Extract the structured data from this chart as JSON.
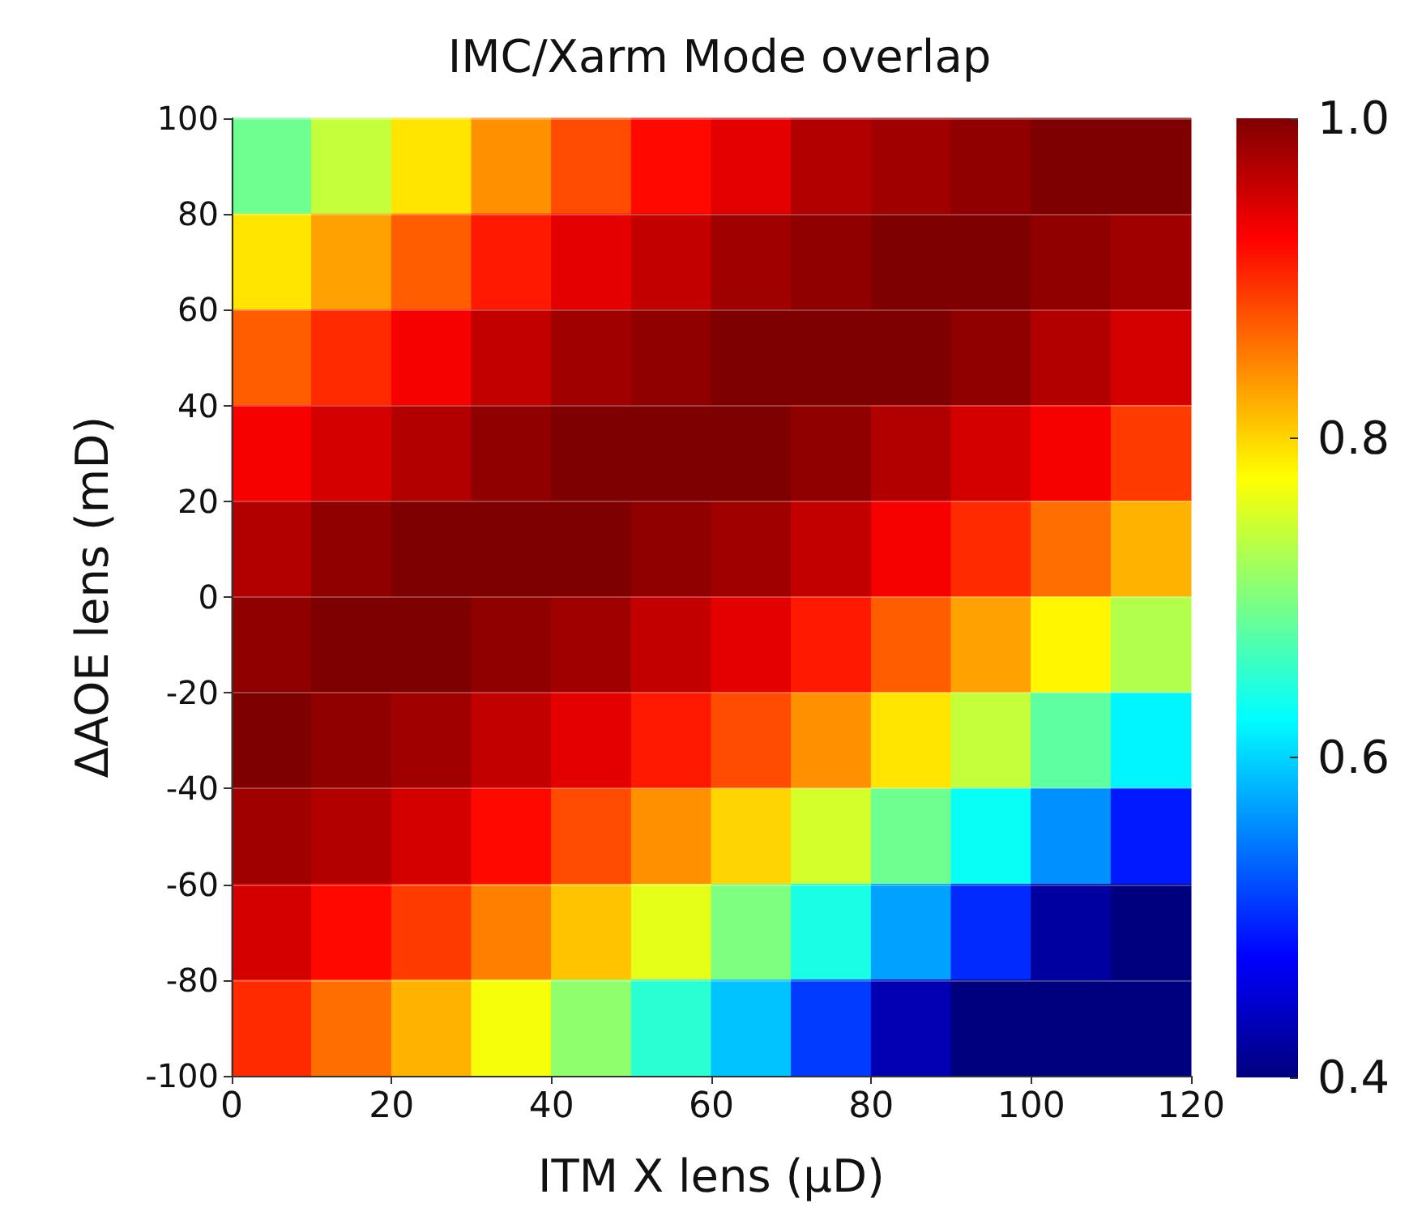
{
  "chart_data": {
    "type": "heatmap",
    "title": "IMC/Xarm Mode overlap",
    "xlabel": "ITM X lens (µD)",
    "ylabel": "ΔAOE lens (mD)",
    "xlim": [
      0,
      120
    ],
    "xticks": [
      0,
      20,
      40,
      60,
      80,
      100,
      120
    ],
    "ylim": [
      -100,
      100
    ],
    "yticks": [
      -100,
      -80,
      -60,
      -40,
      -20,
      0,
      20,
      40,
      60,
      80,
      100
    ],
    "grid": "y",
    "clim": [
      0.4,
      1.0
    ],
    "cticks": [
      0.4,
      0.6,
      0.8,
      {
        "value": 1,
        "label": "1.0"
      }
    ],
    "cells": [
      [
        0.69,
        0.74,
        0.79,
        0.84,
        0.88,
        0.92,
        0.94,
        0.97,
        0.98,
        0.99,
        1.0,
        1.0
      ],
      [
        0.79,
        0.83,
        0.87,
        0.91,
        0.94,
        0.96,
        0.98,
        0.99,
        1.0,
        1.0,
        0.99,
        0.98
      ],
      [
        0.87,
        0.9,
        0.93,
        0.96,
        0.98,
        0.99,
        1.0,
        1.0,
        1.0,
        0.99,
        0.97,
        0.95
      ],
      [
        0.93,
        0.95,
        0.97,
        0.99,
        1.0,
        1.0,
        1.0,
        0.99,
        0.97,
        0.95,
        0.93,
        0.89
      ],
      [
        0.97,
        0.99,
        1.0,
        1.0,
        1.0,
        0.99,
        0.98,
        0.96,
        0.93,
        0.9,
        0.86,
        0.82
      ],
      [
        0.99,
        1.0,
        1.0,
        0.99,
        0.98,
        0.96,
        0.94,
        0.91,
        0.87,
        0.83,
        0.78,
        0.73
      ],
      [
        1.0,
        0.99,
        0.98,
        0.96,
        0.94,
        0.91,
        0.88,
        0.84,
        0.79,
        0.74,
        0.68,
        0.62
      ],
      [
        0.98,
        0.97,
        0.95,
        0.92,
        0.88,
        0.84,
        0.8,
        0.75,
        0.69,
        0.63,
        0.56,
        0.49
      ],
      [
        0.95,
        0.92,
        0.89,
        0.85,
        0.81,
        0.76,
        0.7,
        0.64,
        0.57,
        0.5,
        0.42,
        0.4
      ],
      [
        0.9,
        0.86,
        0.82,
        0.77,
        0.71,
        0.65,
        0.59,
        0.51,
        0.43,
        0.4,
        0.4,
        0.4
      ]
    ]
  }
}
